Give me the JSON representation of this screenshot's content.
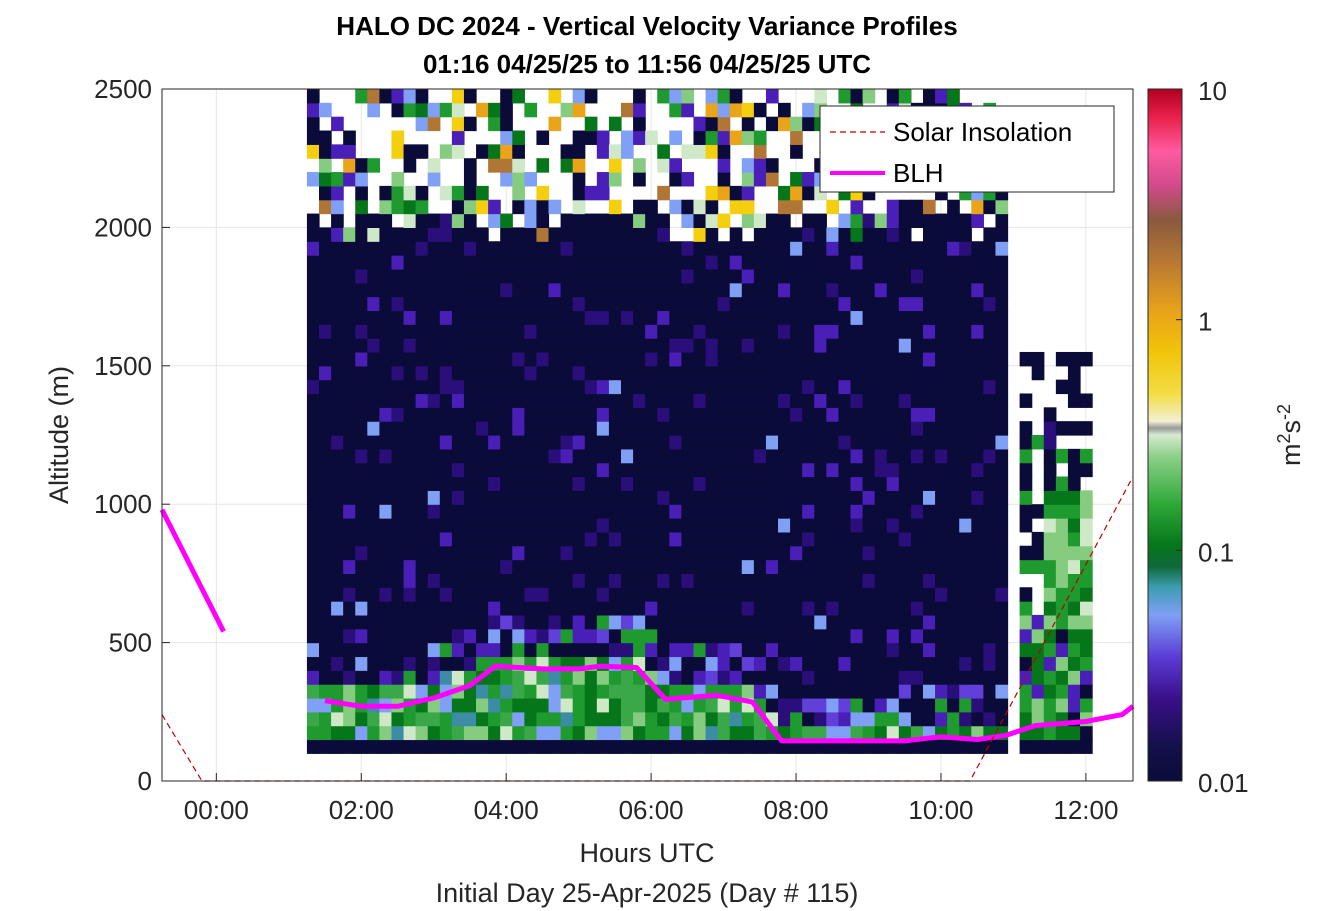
{
  "chart_data": {
    "type": "heatmap",
    "title": "HALO DC 2024 - Vertical Velocity Variance Profiles",
    "subtitle": "01:16 04/25/25 to 11:56 04/25/25  UTC",
    "xlabel": "Hours UTC",
    "xlabel2": "Initial Day 25-Apr-2025 (Day # 115)",
    "ylabel": "Altitude (m)",
    "xlim": [
      -0.75,
      12.65
    ],
    "ylim": [
      0,
      2500
    ],
    "x_ticks": [
      0,
      2,
      4,
      6,
      8,
      10,
      12
    ],
    "x_tick_labels": [
      "00:00",
      "02:00",
      "04:00",
      "06:00",
      "08:00",
      "10:00",
      "12:00"
    ],
    "y_ticks": [
      0,
      500,
      1000,
      1500,
      2000,
      2500
    ],
    "y_tick_labels": [
      "0",
      "500",
      "1000",
      "1500",
      "2000",
      "2500"
    ],
    "grid": true,
    "legend_position": "top-right",
    "legend": [
      {
        "name": "Solar Insolation",
        "color": "#c00000",
        "style": "dashed"
      },
      {
        "name": "BLH",
        "color": "#ff00ff",
        "style": "solid"
      }
    ],
    "colorbar": {
      "label": "m²s⁻²",
      "label_base": "m",
      "label_exp1": "2",
      "label_mid": "s",
      "label_exp2": "-2",
      "scale": "log",
      "range": [
        0.01,
        10
      ],
      "ticks": [
        0.01,
        0.1,
        1,
        10
      ],
      "tick_labels": [
        "0.01",
        "0.1",
        "1",
        "10"
      ]
    },
    "heatmap": {
      "x_start": 1.25,
      "x_end": 11.95,
      "dx": 0.1667,
      "y_start": 100,
      "y_end": 2500,
      "dy": 50,
      "description_note": "Mostly low variance (~0.01) in 100-2000 m; moderate to high variance (0.03-0.3) in the boundary layer below ~450 m; sparse high variance above 2000 m."
    },
    "series": [
      {
        "name": "BLH",
        "x": [
          -0.75,
          0.1,
          null,
          1.5,
          2.0,
          2.5,
          3.0,
          3.5,
          3.85,
          4.5,
          5.0,
          5.3,
          5.8,
          6.2,
          6.9,
          7.4,
          7.8,
          8.5,
          9.5,
          10.0,
          10.5,
          10.9,
          11.3,
          12.0,
          12.5,
          12.65
        ],
        "y": [
          980,
          540,
          null,
          290,
          270,
          270,
          300,
          345,
          415,
          405,
          405,
          415,
          410,
          295,
          310,
          285,
          145,
          145,
          145,
          160,
          150,
          165,
          200,
          215,
          240,
          270
        ]
      },
      {
        "name": "Solar Insolation",
        "x": [
          -0.75,
          -0.2,
          10.4,
          12.65
        ],
        "y": [
          240,
          0,
          0,
          1100
        ]
      }
    ]
  }
}
